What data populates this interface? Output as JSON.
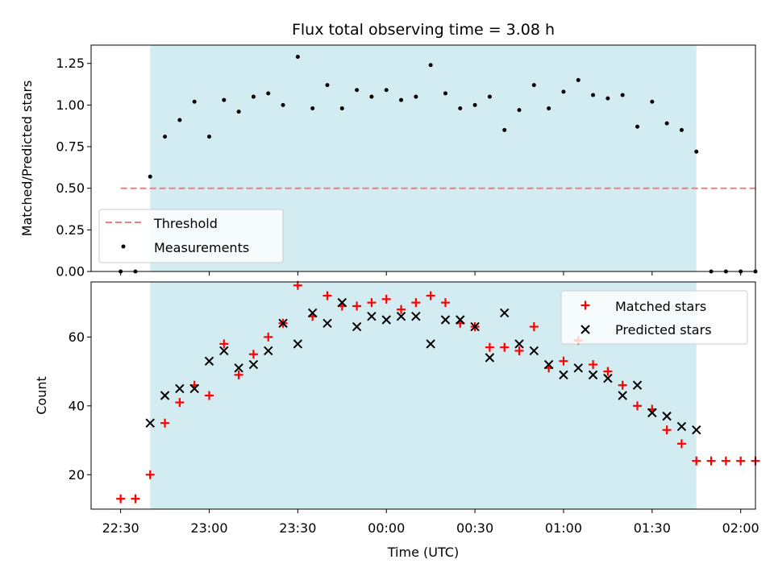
{
  "chart_data": [
    {
      "type": "scatter",
      "title": "Flux total observing time = 3.08 h",
      "ylabel": "Matched/Predicted stars",
      "xlabel": "",
      "x_range_minutes": [
        1340,
        1565
      ],
      "xticks": [
        {
          "label": "22:30",
          "minutes": 1350
        },
        {
          "label": "23:00",
          "minutes": 1380
        },
        {
          "label": "23:30",
          "minutes": 1410
        },
        {
          "label": "00:00",
          "minutes": 1440
        },
        {
          "label": "00:30",
          "minutes": 1470
        },
        {
          "label": "01:00",
          "minutes": 1500
        },
        {
          "label": "01:30",
          "minutes": 1530
        },
        {
          "label": "02:00",
          "minutes": 1560
        }
      ],
      "ylim": [
        0,
        1.36
      ],
      "yticks": [
        "0.00",
        "0.25",
        "0.50",
        "0.75",
        "1.00",
        "1.25"
      ],
      "shaded_span": {
        "start_minutes": 1360,
        "end_minutes": 1545,
        "color": "#d3ecf1"
      },
      "threshold": {
        "name": "Threshold",
        "value": 0.5,
        "start_minutes": 1350,
        "end_minutes": 1565,
        "color": "#f08080"
      },
      "series": [
        {
          "name": "Measurements",
          "color": "#000000",
          "x_minutes": [
            1350,
            1355,
            1360,
            1365,
            1370,
            1375,
            1380,
            1385,
            1390,
            1395,
            1400,
            1405,
            1410,
            1415,
            1420,
            1425,
            1430,
            1435,
            1440,
            1445,
            1450,
            1455,
            1460,
            1465,
            1470,
            1475,
            1480,
            1485,
            1490,
            1495,
            1500,
            1505,
            1510,
            1515,
            1520,
            1525,
            1530,
            1535,
            1540,
            1545,
            1550,
            1555,
            1560,
            1565
          ],
          "values": [
            0.0,
            0.0,
            0.57,
            0.81,
            0.91,
            1.02,
            0.81,
            1.03,
            0.96,
            1.05,
            1.07,
            1.0,
            1.29,
            0.98,
            1.12,
            0.98,
            1.09,
            1.05,
            1.09,
            1.03,
            1.05,
            1.24,
            1.07,
            0.98,
            1.0,
            1.05,
            0.85,
            0.97,
            1.12,
            0.98,
            1.08,
            1.15,
            1.06,
            1.04,
            1.06,
            0.87,
            1.02,
            0.89,
            0.85,
            0.72,
            0.0,
            0.0,
            0.0,
            0.0
          ]
        }
      ],
      "legend": {
        "placement": "lower-left",
        "entries": [
          "Threshold",
          "Measurements"
        ]
      }
    },
    {
      "type": "scatter",
      "title": "",
      "ylabel": "Count",
      "xlabel": "Time (UTC)",
      "x_range_minutes": [
        1340,
        1565
      ],
      "ylim": [
        10,
        76
      ],
      "yticks": [
        "20",
        "40",
        "60"
      ],
      "shaded_span": {
        "start_minutes": 1360,
        "end_minutes": 1545,
        "color": "#d3ecf1"
      },
      "series": [
        {
          "name": "Matched stars",
          "marker": "plus",
          "color": "#ff0000",
          "x_minutes": [
            1350,
            1355,
            1360,
            1365,
            1370,
            1375,
            1380,
            1385,
            1390,
            1395,
            1400,
            1405,
            1410,
            1415,
            1420,
            1425,
            1430,
            1435,
            1440,
            1445,
            1450,
            1455,
            1460,
            1465,
            1470,
            1475,
            1480,
            1485,
            1490,
            1495,
            1500,
            1505,
            1510,
            1515,
            1520,
            1525,
            1530,
            1535,
            1540,
            1545,
            1550,
            1555,
            1560,
            1565
          ],
          "values": [
            13,
            13,
            20,
            35,
            41,
            46,
            43,
            58,
            49,
            55,
            60,
            64,
            75,
            66,
            72,
            69,
            69,
            70,
            71,
            68,
            70,
            72,
            70,
            64,
            63,
            57,
            57,
            56,
            63,
            51,
            53,
            59,
            52,
            50,
            46,
            40,
            39,
            33,
            29,
            24,
            24,
            24,
            24,
            24
          ]
        },
        {
          "name": "Predicted stars",
          "marker": "x",
          "color": "#000000",
          "x_minutes": [
            1360,
            1365,
            1370,
            1375,
            1380,
            1385,
            1390,
            1395,
            1400,
            1405,
            1410,
            1415,
            1420,
            1425,
            1430,
            1435,
            1440,
            1445,
            1450,
            1455,
            1460,
            1465,
            1470,
            1475,
            1480,
            1485,
            1490,
            1495,
            1500,
            1505,
            1510,
            1515,
            1520,
            1525,
            1530,
            1535,
            1540,
            1545
          ],
          "values": [
            35,
            43,
            45,
            45,
            53,
            56,
            51,
            52,
            56,
            64,
            58,
            67,
            64,
            70,
            63,
            66,
            65,
            66,
            66,
            58,
            65,
            65,
            63,
            54,
            67,
            58,
            56,
            52,
            49,
            51,
            49,
            48,
            43,
            46,
            38,
            37,
            34,
            33
          ]
        }
      ],
      "legend": {
        "placement": "upper-right",
        "entries": [
          "Matched stars",
          "Predicted stars"
        ]
      }
    }
  ]
}
